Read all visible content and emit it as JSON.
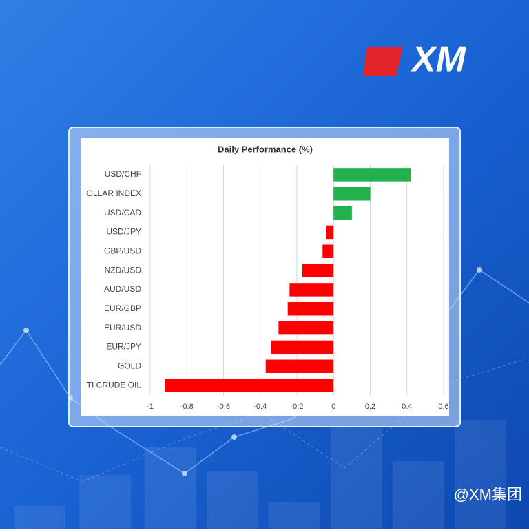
{
  "logo": "XM",
  "watermark": "@XM集团",
  "chart_data": {
    "type": "bar",
    "orientation": "horizontal",
    "title": "Daily Performance (%)",
    "categories": [
      "USD/CHF",
      "OLLAR INDEX",
      "USD/CAD",
      "USD/JPY",
      "GBP/USD",
      "NZD/USD",
      "AUD/USD",
      "EUR/GBP",
      "EUR/USD",
      "EUR/JPY",
      "GOLD",
      "TI CRUDE OIL"
    ],
    "values": [
      0.42,
      0.2,
      0.1,
      -0.04,
      -0.06,
      -0.17,
      -0.24,
      -0.25,
      -0.3,
      -0.34,
      -0.37,
      -0.92
    ],
    "positive_color": "#22b14c",
    "negative_color": "#ff0000",
    "xlim": [
      -1,
      0.6
    ],
    "xticks": [
      -1,
      -0.8,
      -0.6,
      -0.4,
      -0.2,
      0,
      0.2,
      0.4,
      0.6
    ],
    "grid": true
  }
}
